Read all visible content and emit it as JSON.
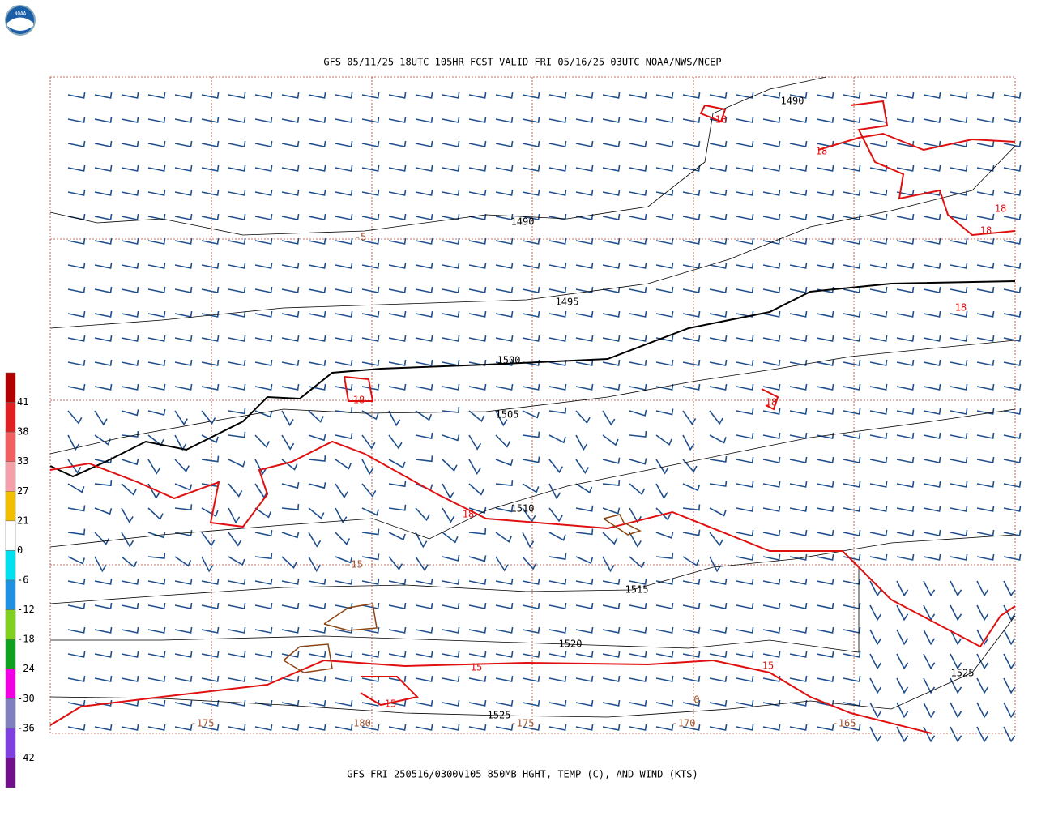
{
  "header": {
    "title": "GFS 05/11/25 18UTC 105HR FCST VALID FRI 05/16/25 03UTC NOAA/NWS/NCEP"
  },
  "footer": {
    "caption": "GFS FRI 250516/0300V105 850MB HGHT, TEMP (C), AND WIND (KTS)"
  },
  "logo": {
    "text": "NOAA"
  },
  "legend": {
    "labels": [
      "41",
      "38",
      "33",
      "27",
      "21",
      "0",
      "-6",
      "-12",
      "-18",
      "-24",
      "-30",
      "-36",
      "-42"
    ]
  },
  "height_labels": [
    "1490",
    "1490",
    "1495",
    "1500",
    "1505",
    "1510",
    "1515",
    "1520",
    "1525",
    "1525"
  ],
  "temp_labels": [
    "18",
    "18",
    "18",
    "18",
    "18",
    "18",
    "18",
    "18",
    "15",
    "15",
    "15"
  ],
  "grid_labels": [
    "-5",
    "-15",
    "-175",
    "180",
    "-175",
    "-170",
    "-165",
    "0"
  ]
}
